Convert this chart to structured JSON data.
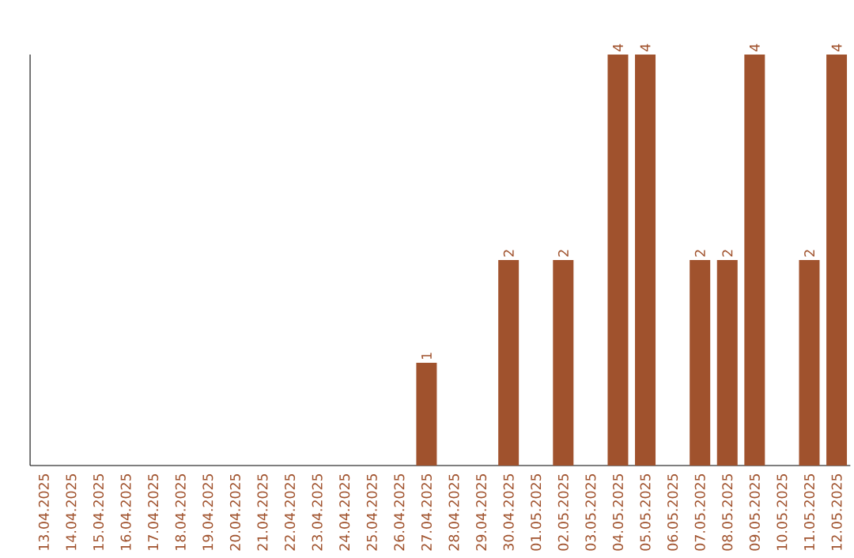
{
  "chart_data": {
    "type": "bar",
    "categories": [
      "13.04.2025",
      "14.04.2025",
      "15.04.2025",
      "16.04.2025",
      "17.04.2025",
      "18.04.2025",
      "19.04.2025",
      "20.04.2025",
      "21.04.2025",
      "22.04.2025",
      "23.04.2025",
      "24.04.2025",
      "25.04.2025",
      "26.04.2025",
      "27.04.2025",
      "28.04.2025",
      "29.04.2025",
      "30.04.2025",
      "01.05.2025",
      "02.05.2025",
      "03.05.2025",
      "04.05.2025",
      "05.05.2025",
      "06.05.2025",
      "07.05.2025",
      "08.05.2025",
      "09.05.2025",
      "10.05.2025",
      "11.05.2025",
      "12.05.2025"
    ],
    "values": [
      null,
      null,
      null,
      null,
      null,
      null,
      null,
      null,
      null,
      null,
      null,
      null,
      null,
      null,
      1,
      null,
      null,
      2,
      null,
      2,
      null,
      4,
      4,
      null,
      2,
      2,
      4,
      null,
      2,
      4
    ],
    "color": "#a0522d",
    "data_labels": true
  }
}
